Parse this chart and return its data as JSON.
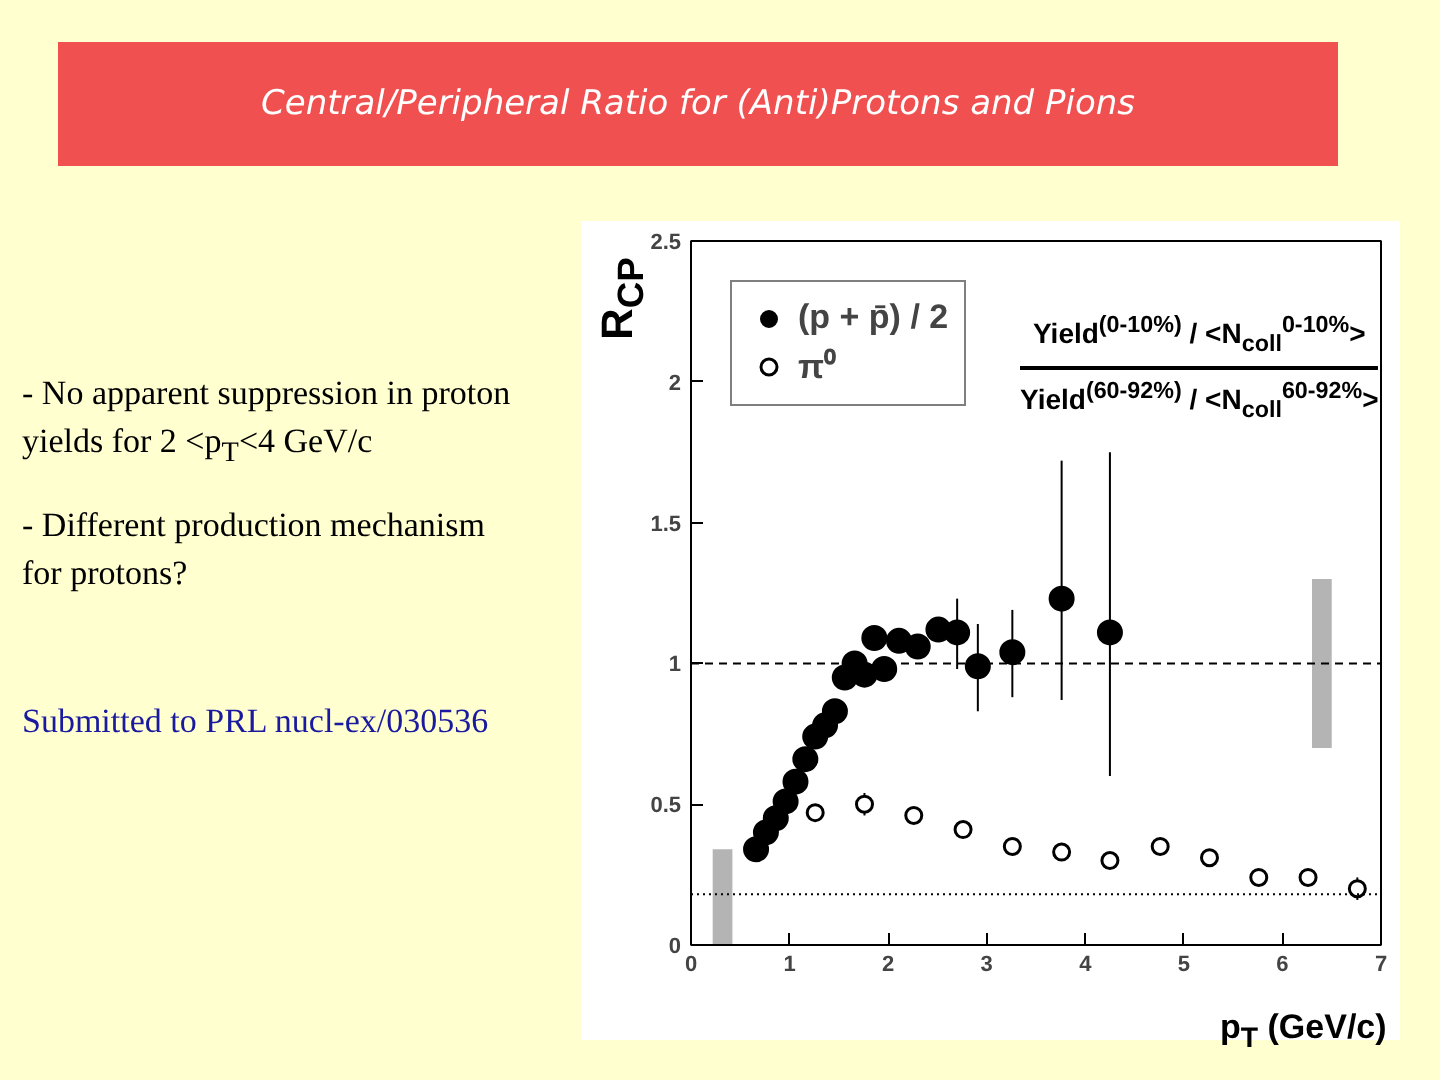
{
  "chart_data": {
    "type": "scatter",
    "title": "Central/Peripheral Ratio for (Anti)Protons and Pions",
    "xlabel": "p$_{T}$ (GeV/c)",
    "ylabel": "R$_{CP}$",
    "xlim": [
      0,
      7
    ],
    "ylim": [
      0,
      2.5
    ],
    "xticks": [
      0,
      1,
      2,
      3,
      4,
      5,
      6,
      7
    ],
    "yticks": [
      0,
      0.5,
      1,
      1.5,
      2,
      2.5
    ],
    "grid": false,
    "legend": "top left",
    "series": [
      {
        "name": "(p + p̄) / 2",
        "color": "#000000",
        "marker": "circle",
        "x": [
          0.66,
          0.76,
          0.86,
          0.96,
          1.06,
          1.16,
          1.26,
          1.36,
          1.46,
          1.56,
          1.66,
          1.76,
          1.86,
          1.96,
          2.11,
          2.3,
          2.51,
          2.7,
          2.91,
          3.26,
          3.76,
          4.25
        ],
        "values": [
          0.34,
          0.4,
          0.45,
          0.51,
          0.58,
          0.66,
          0.74,
          0.78,
          0.83,
          0.95,
          1.0,
          0.96,
          1.09,
          0.98,
          1.08,
          1.06,
          1.12,
          1.11,
          0.99,
          1.04,
          1.23,
          1.11
        ],
        "errors": [
          null,
          null,
          null,
          null,
          null,
          null,
          null,
          null,
          null,
          null,
          null,
          null,
          null,
          null,
          null,
          null,
          null,
          [
            0.98,
            1.23
          ],
          [
            0.83,
            1.14
          ],
          [
            0.88,
            1.19
          ],
          [
            0.87,
            1.72
          ],
          [
            0.6,
            1.75
          ]
        ]
      },
      {
        "name": "π⁰",
        "color": "#000000",
        "marker": "open_circle",
        "x": [
          1.26,
          1.76,
          2.26,
          2.76,
          3.26,
          3.76,
          4.25,
          4.76,
          5.26,
          5.76,
          6.26,
          6.76
        ],
        "values": [
          0.47,
          0.5,
          0.46,
          0.41,
          0.35,
          0.33,
          0.3,
          0.35,
          0.31,
          0.24,
          0.24,
          0.2
        ],
        "errors": [
          0.03,
          0.04,
          0.03,
          0.02,
          0.03,
          0.02,
          0.02,
          0.03,
          0.03,
          0.03,
          0.03,
          0.04
        ]
      },
      {
        "type": "bar",
        "color": "#b4b4b4",
        "x": [
          0.32
        ],
        "base": [
          0
        ],
        "values": [
          0.34
        ]
      },
      {
        "type": "bar",
        "color": "#b4b4b4",
        "x": [
          6.4
        ],
        "base": [
          0.7
        ],
        "values": [
          0.6
        ]
      }
    ],
    "ref_lines": [
      {
        "axis": "y",
        "value": 1,
        "line_style": "dashed"
      },
      {
        "axis": "y",
        "value": 0.18,
        "line_style": "dotted"
      }
    ],
    "annotations": [
      "Yield$^{(0-10%)}$ / <N$_{coll}$$^{0-10%}$>",
      "Yield$^{(60-92%)}$ / <N$_{coll}$$^{60-92%}$>",
      "-  No apparent suppression in proton yields for 2 <p$_{T}$<4 GeV/c",
      "-  Different production mechanism for protons?",
      "Submitted to PRL nucl-ex/030536"
    ]
  }
}
